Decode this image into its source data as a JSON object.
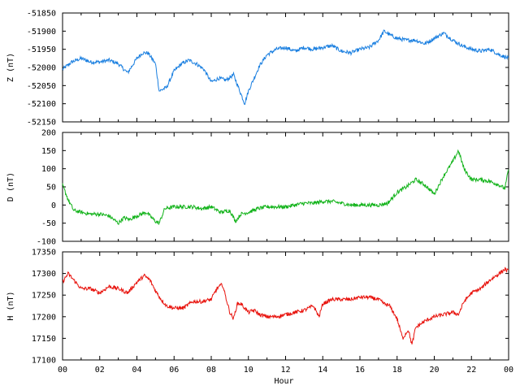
{
  "chart_data": [
    {
      "type": "line",
      "ylabel": "Z (nT)",
      "ylim": [
        -52150,
        -51850
      ],
      "yticks": [
        -51850,
        -51900,
        -51950,
        -52000,
        -52050,
        -52100,
        -52150
      ],
      "color": "#1a7fe0",
      "series": [
        {
          "x": [
            0,
            0.5,
            1,
            1.5,
            2,
            2.5,
            3,
            3.5,
            4,
            4.3,
            4.6,
            5,
            5.2,
            5.6,
            6,
            6.4,
            6.8,
            7.2,
            7.6,
            8,
            8.4,
            8.8,
            9.2,
            9.5,
            9.8,
            10,
            10.3,
            10.6,
            11,
            11.5,
            12,
            12.5,
            13,
            13.5,
            14,
            14.5,
            15,
            15.5,
            16,
            16.5,
            17,
            17.3,
            17.6,
            18,
            18.5,
            19,
            19.5,
            20,
            20.5,
            21,
            21.5,
            22,
            22.5,
            23,
            23.5,
            24
          ],
          "y": [
            -52005,
            -51985,
            -51975,
            -51985,
            -51985,
            -51980,
            -51990,
            -52015,
            -51975,
            -51960,
            -51960,
            -51990,
            -52065,
            -52055,
            -52010,
            -51990,
            -51980,
            -51990,
            -52005,
            -52040,
            -52030,
            -52035,
            -52020,
            -52060,
            -52100,
            -52065,
            -52030,
            -51995,
            -51965,
            -51950,
            -51945,
            -51955,
            -51945,
            -51950,
            -51945,
            -51940,
            -51955,
            -51960,
            -51950,
            -51945,
            -51925,
            -51900,
            -51910,
            -51920,
            -51925,
            -51925,
            -51935,
            -51920,
            -51905,
            -51925,
            -51940,
            -51950,
            -51955,
            -51950,
            -51965,
            -51975
          ]
        }
      ]
    },
    {
      "type": "line",
      "ylabel": "D (nT)",
      "ylim": [
        -100,
        200
      ],
      "yticks": [
        200,
        150,
        100,
        50,
        0,
        -50,
        -100
      ],
      "color": "#12b31a",
      "series": [
        {
          "x": [
            0,
            0.3,
            0.6,
            1,
            1.5,
            2,
            2.5,
            3,
            3.3,
            3.6,
            4,
            4.5,
            5,
            5.2,
            5.5,
            6,
            6.5,
            7,
            7.5,
            8,
            8.5,
            9,
            9.3,
            9.6,
            10,
            10.5,
            11,
            11.5,
            12,
            12.5,
            13,
            13.5,
            14,
            14.5,
            15,
            15.5,
            16,
            16.5,
            17,
            17.5,
            18,
            18.5,
            19,
            19.5,
            20,
            20.5,
            21,
            21.3,
            21.6,
            22,
            22.5,
            23,
            23.5,
            23.8,
            24
          ],
          "y": [
            55,
            15,
            -15,
            -20,
            -25,
            -25,
            -30,
            -50,
            -35,
            -40,
            -30,
            -20,
            -45,
            -50,
            -10,
            -5,
            -5,
            -5,
            -10,
            -5,
            -20,
            -15,
            -45,
            -25,
            -20,
            -10,
            -5,
            -5,
            -5,
            0,
            5,
            5,
            10,
            10,
            5,
            0,
            0,
            0,
            0,
            5,
            35,
            50,
            70,
            55,
            30,
            80,
            120,
            150,
            100,
            70,
            70,
            65,
            55,
            45,
            100
          ]
        }
      ]
    },
    {
      "type": "line",
      "ylabel": "H (nT)",
      "xlabel": "Hour",
      "ylim": [
        17100,
        17350
      ],
      "yticks": [
        17350,
        17300,
        17250,
        17200,
        17150,
        17100
      ],
      "xticks": [
        "00",
        "02",
        "04",
        "06",
        "08",
        "10",
        "12",
        "14",
        "16",
        "18",
        "20",
        "22",
        "00"
      ],
      "color": "#e8120c",
      "series": [
        {
          "x": [
            0,
            0.3,
            0.6,
            1,
            1.5,
            2,
            2.5,
            3,
            3.5,
            4,
            4.4,
            4.7,
            5,
            5.3,
            5.6,
            6,
            6.5,
            7,
            7.5,
            8,
            8.3,
            8.6,
            9,
            9.2,
            9.4,
            9.6,
            10,
            10.3,
            10.6,
            11,
            11.5,
            12,
            12.5,
            13,
            13.5,
            13.8,
            14,
            14.5,
            15,
            15.5,
            16,
            16.5,
            17,
            17.3,
            17.6,
            18,
            18.3,
            18.6,
            18.8,
            19,
            19.5,
            20,
            20.5,
            21,
            21.3,
            21.6,
            22,
            22.5,
            23,
            23.5,
            23.8,
            24
          ],
          "y": [
            17280,
            17300,
            17285,
            17265,
            17265,
            17255,
            17270,
            17265,
            17255,
            17280,
            17295,
            17285,
            17260,
            17240,
            17225,
            17220,
            17220,
            17235,
            17235,
            17240,
            17265,
            17275,
            17210,
            17195,
            17230,
            17230,
            17210,
            17215,
            17205,
            17200,
            17200,
            17205,
            17210,
            17215,
            17225,
            17200,
            17230,
            17240,
            17240,
            17240,
            17245,
            17245,
            17240,
            17230,
            17225,
            17195,
            17150,
            17170,
            17135,
            17175,
            17190,
            17200,
            17205,
            17210,
            17205,
            17235,
            17255,
            17265,
            17285,
            17300,
            17310,
            17305
          ]
        }
      ]
    }
  ]
}
